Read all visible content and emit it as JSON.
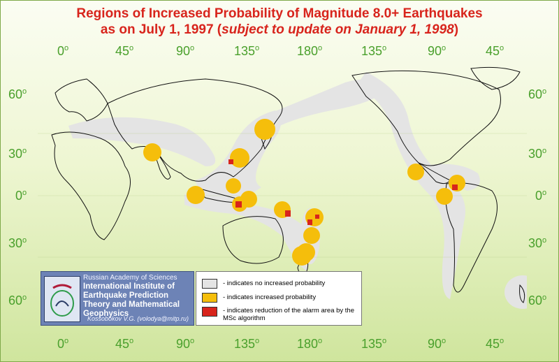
{
  "title_line1": "Regions of Increased Probability of Magnitude 8.0+ Earthquakes",
  "title_line2_plain": "as on July 1, 1997 (",
  "title_line2_italic": "subject to update on January 1, 1998",
  "title_line2_close": ")",
  "degree_sign": "o",
  "longitude_labels": [
    "0",
    "45",
    "90",
    "135",
    "180",
    "135",
    "90",
    "45"
  ],
  "latitude_labels": [
    "60",
    "30",
    "0",
    "30",
    "60"
  ],
  "institute": {
    "academy": "Russian Academy of Sciences",
    "name": "International Institute of Earthquake Prediction Theory and Mathematical Geophysics",
    "author": "Kossobokov V.G. (volodya@mitp.ru)"
  },
  "legend": {
    "gray": "- indicates no increased probability",
    "yellow": "- indicates increased probability",
    "red": "- indicates reduction of the alarm area by the MSc algorithm"
  },
  "colors": {
    "title": "#d8241c",
    "axis_labels": "#4aa02c",
    "no_increase": "#e4e4e4",
    "increased": "#f5be0b",
    "reduced": "#d8241c"
  }
}
